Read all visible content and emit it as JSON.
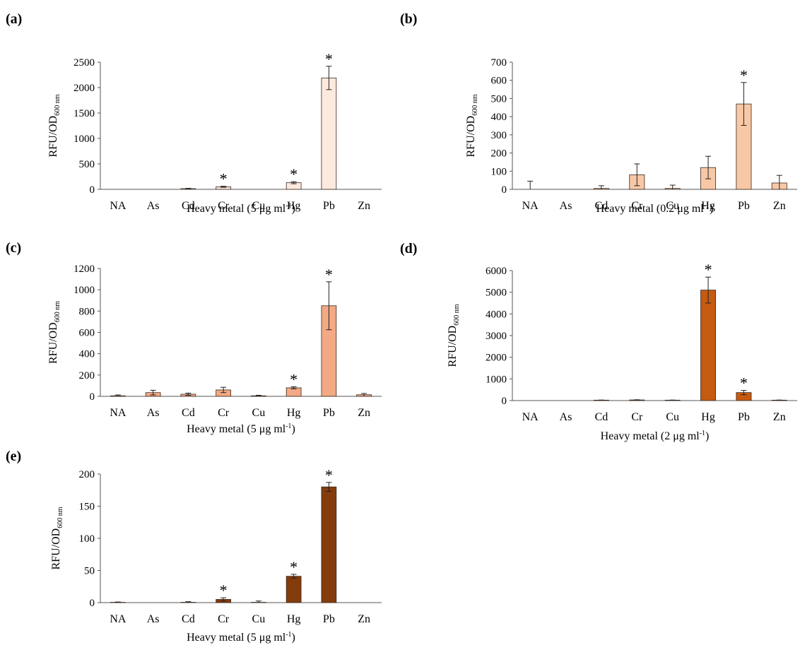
{
  "chart_data": [
    {
      "type": "bar",
      "panel_label": "(a)",
      "categories": [
        "NA",
        "As",
        "Cd",
        "Cr",
        "Cu",
        "Hg",
        "Pb",
        "Zn"
      ],
      "values": [
        0,
        0,
        15,
        50,
        0,
        130,
        2190,
        0
      ],
      "errors": [
        0,
        0,
        5,
        10,
        0,
        20,
        230,
        0
      ],
      "significant": [
        false,
        false,
        false,
        true,
        false,
        true,
        true,
        false
      ],
      "ylim": [
        0,
        2500
      ],
      "yticks": [
        0,
        500,
        1000,
        1500,
        2000,
        2500
      ],
      "ylabel": "RFU/OD",
      "ylabel_sub": "600 nm",
      "xlabel": "Heavy metal (5 μg ml",
      "xlabel_sup": "-1",
      "xlabel_end": ")",
      "color": "#fde9de"
    },
    {
      "type": "bar",
      "panel_label": "(b)",
      "categories": [
        "NA",
        "As",
        "Cd",
        "Cr",
        "Cu",
        "Hg",
        "Pb",
        "Zn"
      ],
      "values": [
        0,
        0,
        5,
        80,
        5,
        120,
        470,
        35
      ],
      "errors": [
        45,
        0,
        15,
        60,
        18,
        62,
        118,
        42
      ],
      "significant": [
        false,
        false,
        false,
        false,
        false,
        false,
        true,
        false
      ],
      "ylim": [
        0,
        700
      ],
      "yticks": [
        0,
        100,
        200,
        300,
        400,
        500,
        600,
        700
      ],
      "ylabel": "RFU/OD",
      "ylabel_sub": "600 nm",
      "xlabel": "Heavy metal (0.2 μg ml",
      "xlabel_sup": "-1",
      "xlabel_end": ")",
      "color": "#f8c8a6"
    },
    {
      "type": "bar",
      "panel_label": "(c)",
      "categories": [
        "NA",
        "As",
        "Cd",
        "Cr",
        "Cu",
        "Hg",
        "Pb",
        "Zn"
      ],
      "values": [
        5,
        35,
        20,
        60,
        5,
        80,
        850,
        15
      ],
      "errors": [
        8,
        22,
        10,
        25,
        5,
        10,
        225,
        12
      ],
      "significant": [
        false,
        false,
        false,
        false,
        false,
        true,
        true,
        false
      ],
      "ylim": [
        0,
        1200
      ],
      "yticks": [
        0,
        200,
        400,
        600,
        800,
        1000,
        1200
      ],
      "ylabel": "RFU/OD",
      "ylabel_sub": "600 nm",
      "xlabel": "Heavy metal (5 μg ml",
      "xlabel_sup": "-1",
      "xlabel_end": ")",
      "color": "#f3a983"
    },
    {
      "type": "bar",
      "panel_label": "(d)",
      "categories": [
        "NA",
        "As",
        "Cd",
        "Cr",
        "Cu",
        "Hg",
        "Pb",
        "Zn"
      ],
      "values": [
        0,
        0,
        20,
        30,
        20,
        5100,
        370,
        20
      ],
      "errors": [
        0,
        0,
        5,
        8,
        5,
        600,
        100,
        5
      ],
      "significant": [
        false,
        false,
        false,
        false,
        false,
        true,
        true,
        false
      ],
      "ylim": [
        0,
        6000
      ],
      "yticks": [
        0,
        1000,
        2000,
        3000,
        4000,
        5000,
        6000
      ],
      "ylabel": "RFU/OD",
      "ylabel_sub": "600 nm",
      "xlabel": "Heavy metal (2 μg ml",
      "xlabel_sup": "-1",
      "xlabel_end": ")",
      "color": "#c55a11"
    },
    {
      "type": "bar",
      "panel_label": "(e)",
      "categories": [
        "NA",
        "As",
        "Cd",
        "Cr",
        "Cu",
        "Hg",
        "Pb",
        "Zn"
      ],
      "values": [
        0.5,
        0,
        0.5,
        5,
        0.5,
        41,
        180,
        0
      ],
      "errors": [
        0.5,
        0,
        1,
        2.5,
        2,
        3,
        7,
        0
      ],
      "significant": [
        false,
        false,
        false,
        true,
        false,
        true,
        true,
        false
      ],
      "ylim": [
        0,
        200
      ],
      "yticks": [
        0,
        50,
        100,
        150,
        200
      ],
      "ylabel": "RFU/OD",
      "ylabel_sub": "600 nm",
      "xlabel": "Heavy metal (5 μg ml",
      "xlabel_sup": "-1",
      "xlabel_end": ")",
      "color": "#843c0c"
    }
  ]
}
